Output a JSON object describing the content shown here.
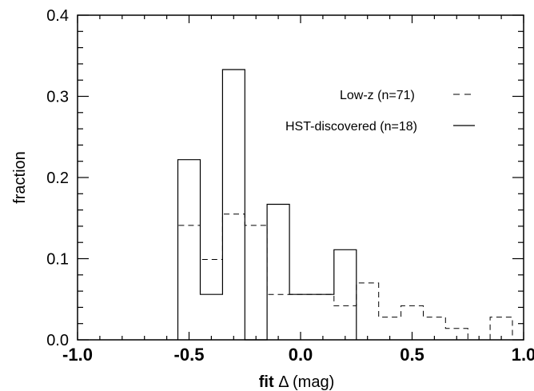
{
  "chart_data": {
    "type": "histogram",
    "xlabel_prefix": "fit",
    "xlabel_symbol": "Δ",
    "xlabel_suffix": "(mag)",
    "ylabel": "fraction",
    "xlim": [
      -1.0,
      1.0
    ],
    "ylim": [
      0.0,
      0.4
    ],
    "x_ticks": [
      "-1.0",
      "-0.5",
      "0.0",
      "0.5",
      "1.0"
    ],
    "x_tick_values": [
      -1.0,
      -0.5,
      0.0,
      0.5,
      1.0
    ],
    "y_ticks": [
      "0.0",
      "0.1",
      "0.2",
      "0.3",
      "0.4"
    ],
    "y_tick_values": [
      0.0,
      0.1,
      0.2,
      0.3,
      0.4
    ],
    "grid": false,
    "legend_position": "top-right",
    "series": [
      {
        "name": "Low-z (n=71)",
        "style": "dashed",
        "bins": [
          {
            "x0": -0.55,
            "x1": -0.45,
            "y": 0.141
          },
          {
            "x0": -0.45,
            "x1": -0.35,
            "y": 0.099
          },
          {
            "x0": -0.35,
            "x1": -0.25,
            "y": 0.155
          },
          {
            "x0": -0.25,
            "x1": -0.15,
            "y": 0.141
          },
          {
            "x0": -0.15,
            "x1": -0.05,
            "y": 0.056
          },
          {
            "x0": -0.05,
            "x1": 0.05,
            "y": 0.056
          },
          {
            "x0": 0.05,
            "x1": 0.15,
            "y": 0.056
          },
          {
            "x0": 0.15,
            "x1": 0.25,
            "y": 0.042
          },
          {
            "x0": 0.25,
            "x1": 0.35,
            "y": 0.07
          },
          {
            "x0": 0.35,
            "x1": 0.45,
            "y": 0.028
          },
          {
            "x0": 0.45,
            "x1": 0.55,
            "y": 0.042
          },
          {
            "x0": 0.55,
            "x1": 0.65,
            "y": 0.028
          },
          {
            "x0": 0.65,
            "x1": 0.75,
            "y": 0.014
          },
          {
            "x0": 0.75,
            "x1": 0.85,
            "y": 0.0
          },
          {
            "x0": 0.85,
            "x1": 0.95,
            "y": 0.028
          }
        ]
      },
      {
        "name": "HST-discovered (n=18)",
        "style": "solid",
        "bins": [
          {
            "x0": -0.55,
            "x1": -0.45,
            "y": 0.222
          },
          {
            "x0": -0.45,
            "x1": -0.35,
            "y": 0.056
          },
          {
            "x0": -0.35,
            "x1": -0.25,
            "y": 0.333
          },
          {
            "x0": -0.25,
            "x1": -0.15,
            "y": 0.0
          },
          {
            "x0": -0.15,
            "x1": -0.05,
            "y": 0.167
          },
          {
            "x0": -0.05,
            "x1": 0.05,
            "y": 0.056
          },
          {
            "x0": 0.05,
            "x1": 0.15,
            "y": 0.056
          },
          {
            "x0": 0.15,
            "x1": 0.25,
            "y": 0.111
          }
        ]
      }
    ]
  }
}
